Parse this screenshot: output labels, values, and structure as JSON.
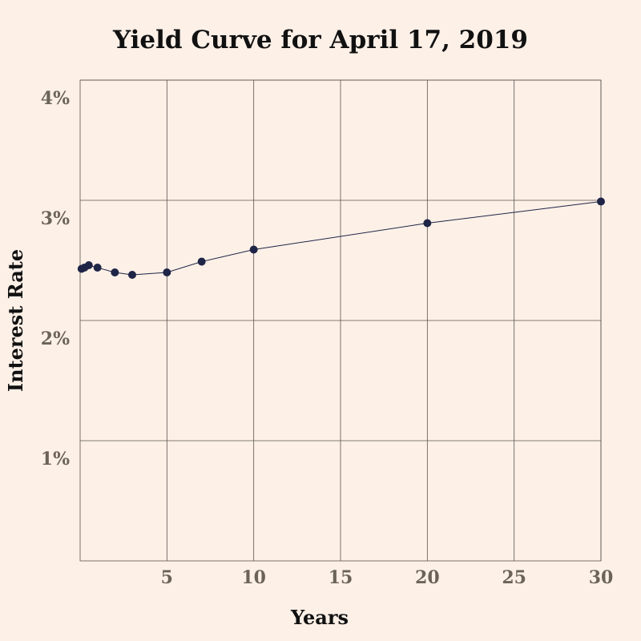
{
  "chart_data": {
    "type": "line",
    "title": "Yield Curve for April 17, 2019",
    "xlabel": "Years",
    "ylabel": "Interest Rate",
    "xlim": [
      0,
      30
    ],
    "ylim": [
      0,
      4
    ],
    "xticks": [
      5,
      10,
      15,
      20,
      25,
      30
    ],
    "xtick_labels": [
      "5",
      "10",
      "15",
      "20",
      "25",
      "30"
    ],
    "yticks": [
      1,
      2,
      3,
      4
    ],
    "ytick_labels": [
      "1%",
      "2%",
      "3%",
      "4%"
    ],
    "grid": true,
    "series": [
      {
        "x": [
          0.083,
          0.25,
          0.5,
          1,
          2,
          3,
          5,
          7,
          10,
          20,
          30
        ],
        "y": [
          2.43,
          2.44,
          2.46,
          2.44,
          2.4,
          2.38,
          2.4,
          2.49,
          2.59,
          2.81,
          2.99
        ]
      }
    ],
    "colors": {
      "background": "#fdf0e7",
      "series": "#1f2547",
      "grid": "#5a5450",
      "tick_label": "#6b6359",
      "title": "#111111"
    }
  }
}
